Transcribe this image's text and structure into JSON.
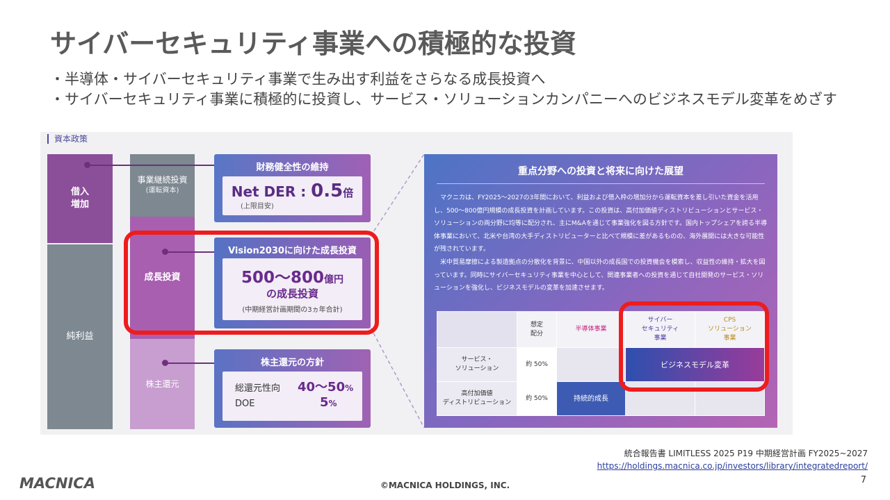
{
  "title": "サイバーセキュリティ事業への積極的な投資",
  "bullets": [
    "・半導体・サイバーセキュリティ事業で生み出す利益をさらなる成長投資へ",
    "・サイバーセキュリティ事業に積極的に投資し、サービス・ソリューションカンパニーへのビジネスモデル変革をめざす"
  ],
  "figure": {
    "caption": "資本政策",
    "sources": {
      "borrow": "借入\n増加",
      "net_income": "純利益"
    },
    "uses": {
      "business_continuity": "事業継続投資",
      "business_continuity_sub": "(運転資本)",
      "growth": "成長投資",
      "shareholder": "株主還元"
    },
    "box_finance": {
      "title": "財務健全性の維持",
      "der_label": "Net DER",
      "der_colon": ":",
      "der_value": "0.5",
      "der_unit": "倍",
      "der_note": "(上限目安)"
    },
    "box_growth": {
      "title": "Vision2030に向けた成長投資",
      "amount": "500～800",
      "amount_unit": "億円",
      "line2": "の成長投資",
      "note": "(中期経営計画期間の3ヵ年合計)"
    },
    "box_return": {
      "title": "株主還元の方針",
      "rows": [
        {
          "label": "総還元性向",
          "value": "40～50",
          "unit": "%"
        },
        {
          "label": "DOE",
          "value": "5",
          "unit": "%"
        }
      ]
    },
    "outlook": {
      "title": "重点分野への投資と将来に向けた展望",
      "para1": "マクニカは、FY2025～2027の3年間において、利益および借入枠の増加分から運転資本を差し引いた資金を活用し、500～800億円規模の成長投資を計画しています。この投資は、高付加価値ディストリビューションとサービス・ソリューションの両分野に均等に配分され、主にM&Aを通じて事業強化を図る方針です。国内トップシェアを誇る半導体事業において、北米や台湾の大手ディストリビューターと比べて規模に差があるものの、海外展開には大きな可能性が残されています。",
      "para2": "米中貿易摩擦による製造拠点の分散化を背景に、中国以外の成長国での投資機会を模索し、収益性の維持・拡大を図っています。同時にサイバーセキュリティ事業を中心として、関連事業者への投資を通じて自社開発のサービス・ソリューションを強化し、ビジネスモデルの変革を加速させます。",
      "table": {
        "header_alloc": "想定\n配分",
        "header_semi": "半導体事業",
        "header_cyber": "サイバー\nセキュリティ\n事業",
        "header_cps": "CPS\nソリューション\n事業",
        "row1_label": "サービス・\nソリューション",
        "row1_pct": "約 50%",
        "row1_value": "ビジネスモデル変革",
        "row2_label": "高付加価値\nディストリビューション",
        "row2_pct": "約 50%",
        "row2_value": "持続的成長"
      }
    }
  },
  "footer": {
    "source": "統合報告書 LIMITLESS 2025 P19 中期経営計画 FY2025~2027",
    "url": "https://holdings.macnica.co.jp/investors/library/integratedreport/",
    "logo": "MACNICA",
    "copyright": "©MACNICA HOLDINGS, INC.",
    "page": "7"
  },
  "colors": {
    "accent_red": "#ee1c1c",
    "purple": "#6a2a8d",
    "title_gray": "#5a5a5a"
  }
}
